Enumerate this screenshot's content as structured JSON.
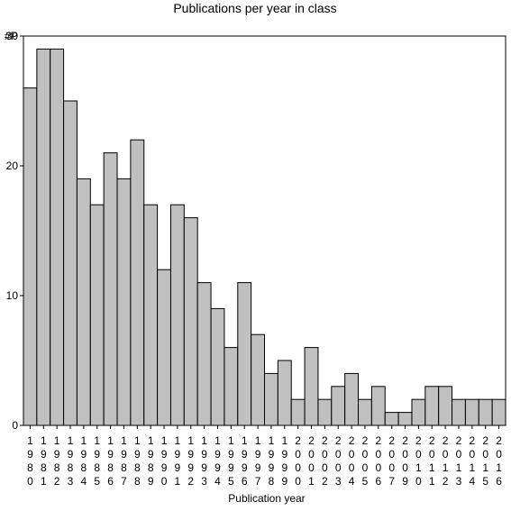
{
  "colors": {
    "bar_fill": "#c0c0c0",
    "bar_stroke": "#000000",
    "frame": "#000000",
    "background": "#ffffff"
  },
  "chart_data": {
    "type": "bar",
    "title": "Publications per year in class",
    "xlabel": "Publication year",
    "ylabel": "#P",
    "ylim": [
      0,
      30
    ],
    "yticks": [
      0,
      10,
      20,
      30
    ],
    "grid": false,
    "legend": "none",
    "categories": [
      "1980",
      "1981",
      "1982",
      "1983",
      "1984",
      "1985",
      "1986",
      "1987",
      "1988",
      "1989",
      "1990",
      "1991",
      "1992",
      "1993",
      "1994",
      "1995",
      "1996",
      "1997",
      "1998",
      "1999",
      "2000",
      "2001",
      "2002",
      "2003",
      "2004",
      "2005",
      "2006",
      "2007",
      "2009",
      "2010",
      "2011",
      "2012",
      "2013",
      "2014",
      "2015",
      "2016"
    ],
    "values": [
      26,
      29,
      29,
      25,
      19,
      17,
      21,
      19,
      22,
      17,
      12,
      17,
      16,
      11,
      9,
      6,
      11,
      7,
      4,
      5,
      2,
      6,
      2,
      3,
      4,
      2,
      3,
      1,
      1,
      2,
      3,
      3,
      2,
      2,
      2,
      2
    ]
  }
}
